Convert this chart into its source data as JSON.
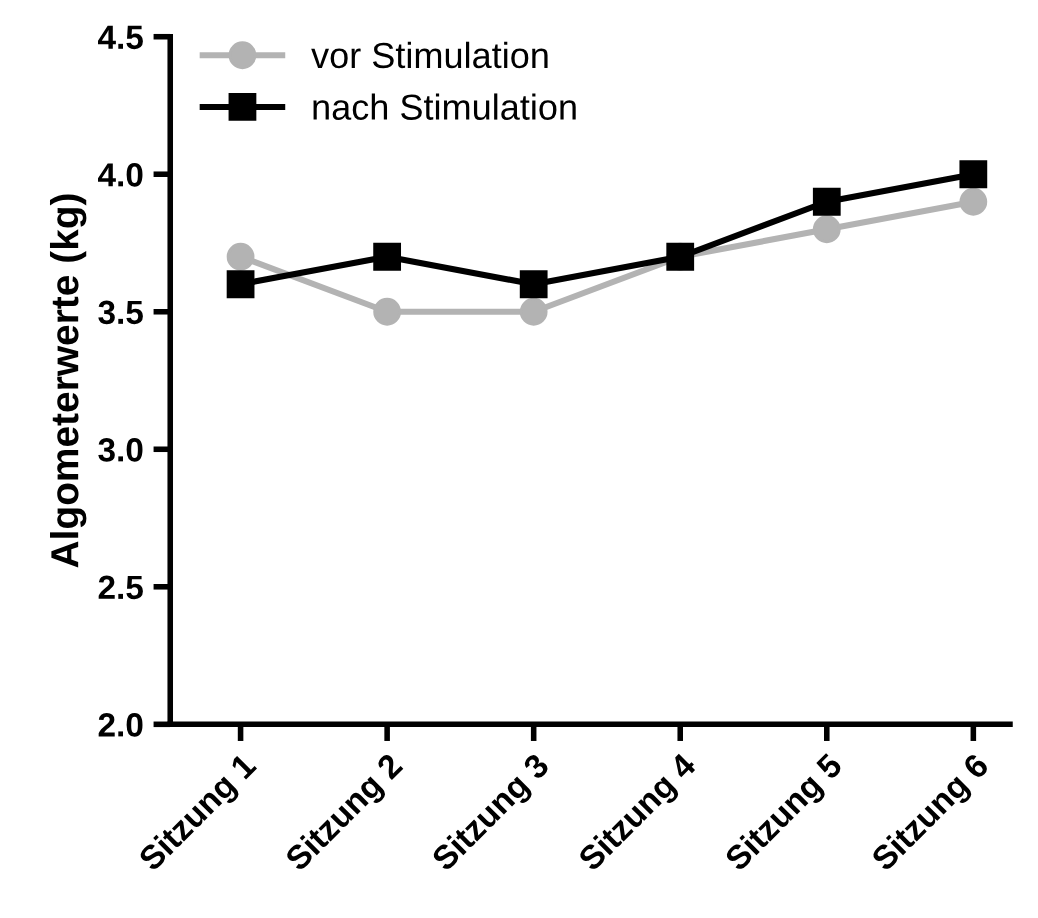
{
  "chart_data": {
    "type": "line",
    "ylabel": "Algometerwerte (kg)",
    "categories": [
      "Sitzung 1",
      "Sitzung 2",
      "Sitzung 3",
      "Sitzung 4",
      "Sitzung 5",
      "Sitzung 6"
    ],
    "series": [
      {
        "name": "vor Stimulation",
        "color": "#b3b3b3",
        "marker": "circle",
        "values": [
          3.7,
          3.5,
          3.5,
          3.7,
          3.8,
          3.9
        ]
      },
      {
        "name": "nach Stimulation",
        "color": "#000000",
        "marker": "square",
        "values": [
          3.6,
          3.7,
          3.6,
          3.7,
          3.9,
          4.0
        ]
      }
    ],
    "ylim": [
      2.0,
      4.5
    ],
    "yticks": [
      {
        "value": 2,
        "label": "2.0"
      },
      2.5,
      {
        "value": 3,
        "label": "3.0"
      },
      3.5,
      {
        "value": 4,
        "label": "4.0"
      },
      4.5
    ],
    "grid": false,
    "legend": "top left",
    "line_style": "solid"
  }
}
